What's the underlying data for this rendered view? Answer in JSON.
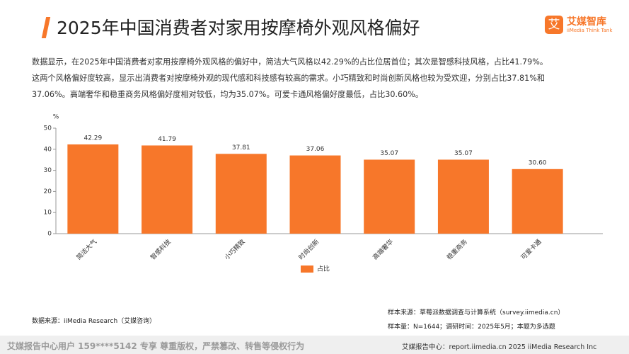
{
  "header": {
    "title": "2025年中国消费者对家用按摩椅外观风格偏好",
    "logo": "艾媒智库",
    "logo_sub": "iiMedia Think Tank"
  },
  "description": [
    "数据显示，在2025年中国消费者对家用按摩椅外观风格的偏好中，简洁大气风格以42.29%的占比位居首位；其次是智感科技风格，占比41.79%。",
    "这两个风格偏好度较高，显示出消费者对按摩椅外观的现代感和科技感有较高的需求。小巧精致和时尚创新风格也较为受欢迎，分别占比37.81%和",
    "37.06%。高端奢华和稳重商务风格偏好度相对较低，均为35.07%。可爱卡通风格偏好度最低，占比30.60%。"
  ],
  "chart_data": {
    "type": "bar",
    "y_unit": "%",
    "categories": [
      "简洁大气",
      "智感科技",
      "小巧精致",
      "时尚创新",
      "高端奢华",
      "稳重商务",
      "可爱卡通"
    ],
    "series": [
      {
        "name": "占比",
        "color": "#f7772a",
        "values": [
          42.29,
          41.79,
          37.81,
          37.06,
          35.07,
          35.07,
          30.6
        ],
        "value_labels": [
          "42.29",
          "41.79",
          "37.81",
          "37.06",
          "35.07",
          "35.07",
          "30.60"
        ]
      }
    ],
    "ylim": [
      0,
      50
    ],
    "yticks": [
      0,
      10,
      20,
      30,
      40,
      50
    ],
    "legend": "bottom"
  },
  "source": "数据来源：iiMedia Research（艾媒咨询）",
  "sample_source": "样本来源：草莓派数据调查与计算系统（survey.iimedia.cn）",
  "sample_info": "样本量：N=1644；调研时间：2025年5月；本题为多选题",
  "footer": {
    "left": "艾媒报告中心用户 159****5142 专享 尊重版权，严禁篡改、转售等侵权行为",
    "right": "艾媒报告中心：report.iimedia.cn  2025 iiMedia Research Inc"
  }
}
